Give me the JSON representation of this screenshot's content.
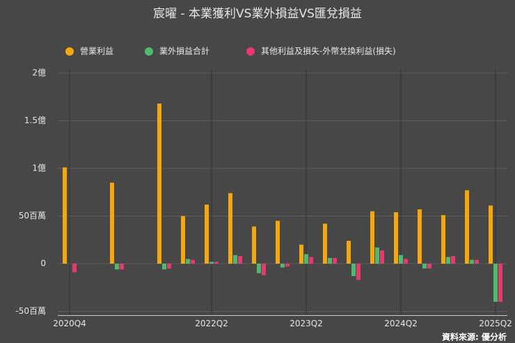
{
  "chart_data": {
    "type": "bar",
    "title": "宸曜 - 本業獲利VS業外損益VS匯兌損益",
    "source": "資料來源: 優分析",
    "categories": [
      "2020Q4",
      null,
      null,
      null,
      null,
      null,
      "2022Q2",
      null,
      null,
      null,
      "2023Q2",
      null,
      null,
      null,
      "2024Q2",
      null,
      null,
      null,
      "2025Q2"
    ],
    "series": [
      {
        "name": "營業利益",
        "color": "#f5a70b",
        "values": [
          101,
          null,
          85,
          null,
          168,
          50,
          62,
          74,
          39,
          45,
          20,
          42,
          24,
          55,
          54,
          57,
          51,
          77,
          61
        ]
      },
      {
        "name": "業外損益合計",
        "color": "#4cbb6c",
        "values": [
          0,
          null,
          -6,
          null,
          -6,
          5,
          2,
          9,
          -10,
          -4,
          10,
          6,
          -13,
          17,
          9,
          -5,
          7,
          4,
          -40
        ]
      },
      {
        "name": "其他利益及損失-外幣兌換利益(損失)",
        "color": "#e8386f",
        "values": [
          -9,
          null,
          -6,
          null,
          -5,
          4,
          2,
          8,
          -12,
          -3,
          7,
          6,
          -17,
          14,
          5,
          -5,
          8,
          4,
          -40
        ]
      }
    ],
    "ylim": [
      -50,
      200
    ],
    "yticks": [
      {
        "value": -50,
        "label": "-50百萬"
      },
      0,
      {
        "value": 50,
        "label": "50百萬"
      },
      {
        "value": 100,
        "label": "1億"
      },
      {
        "value": 150,
        "label": "1.5億"
      },
      {
        "value": 200,
        "label": "2億"
      }
    ],
    "grid": true
  }
}
